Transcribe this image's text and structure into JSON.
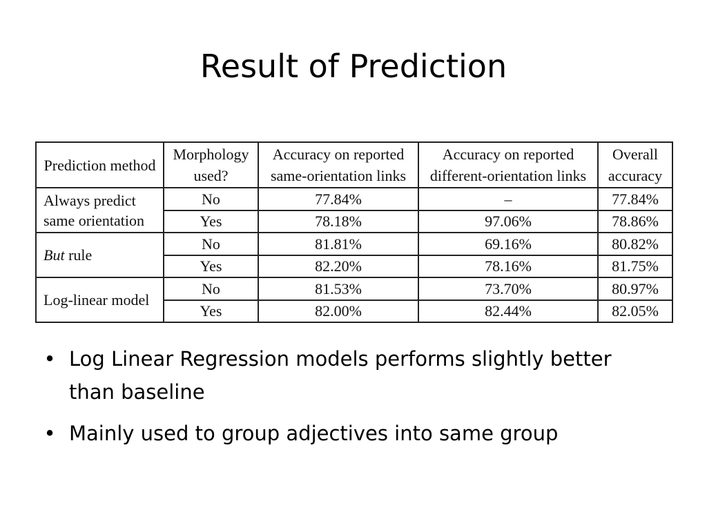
{
  "title": "Result of Prediction",
  "table": {
    "headers": [
      "Prediction method",
      "Morphology used?",
      "Accuracy on reported same-orientation links",
      "Accuracy on reported different-orientation links",
      "Overall accuracy"
    ],
    "groups": [
      {
        "method_prefix": "",
        "method_italic": "",
        "method_suffix": "Always predict same orientation",
        "rows": [
          {
            "morphology": "No",
            "same": "77.84%",
            "different": "–",
            "overall": "77.84%"
          },
          {
            "morphology": "Yes",
            "same": "78.18%",
            "different": "97.06%",
            "overall": "78.86%"
          }
        ]
      },
      {
        "method_prefix": "",
        "method_italic": "But",
        "method_suffix": " rule",
        "rows": [
          {
            "morphology": "No",
            "same": "81.81%",
            "different": "69.16%",
            "overall": "80.82%"
          },
          {
            "morphology": "Yes",
            "same": "82.20%",
            "different": "78.16%",
            "overall": "81.75%"
          }
        ]
      },
      {
        "method_prefix": "",
        "method_italic": "",
        "method_suffix": "Log-linear model",
        "rows": [
          {
            "morphology": "No",
            "same": "81.53%",
            "different": "73.70%",
            "overall": "80.97%"
          },
          {
            "morphology": "Yes",
            "same": "82.00%",
            "different": "82.44%",
            "overall": "82.05%"
          }
        ]
      }
    ]
  },
  "bullets": [
    "Log Linear Regression models performs slightly better than baseline",
    "Mainly used to group adjectives into same group"
  ],
  "bullet_glyph": "•"
}
